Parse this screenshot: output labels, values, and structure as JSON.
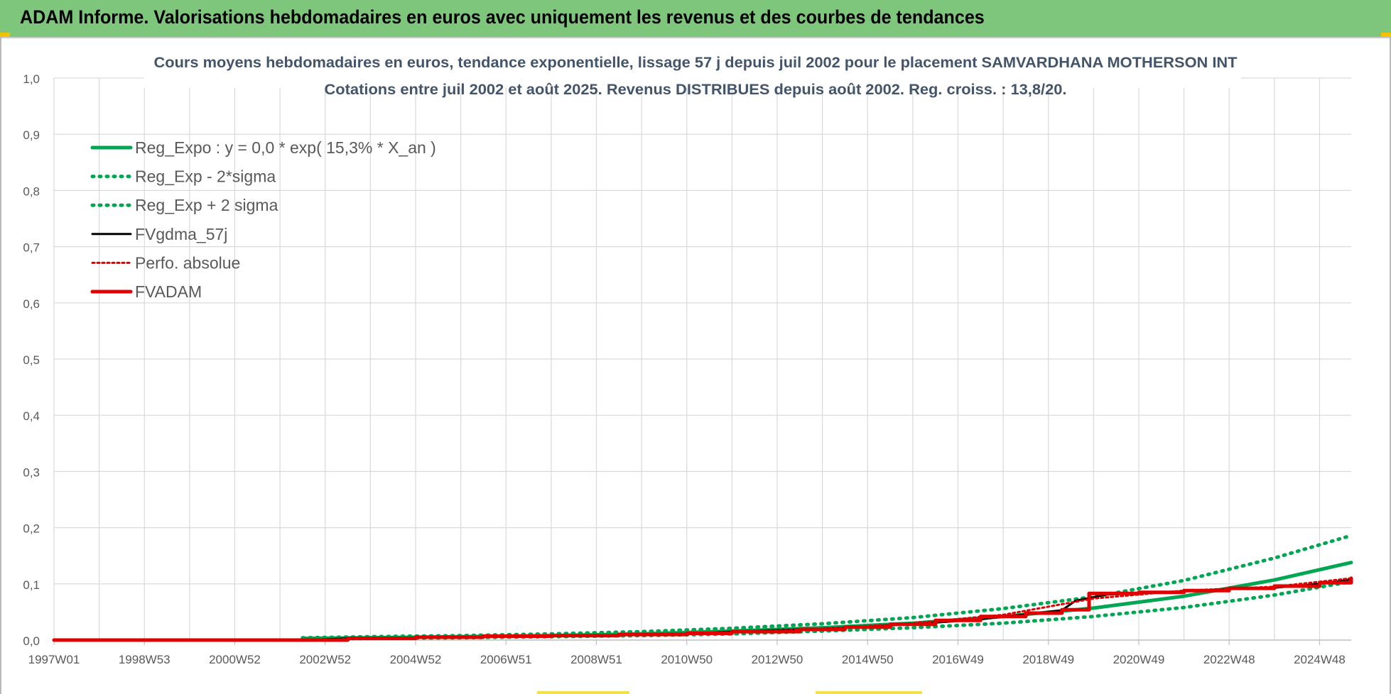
{
  "header": {
    "title": "ADAM Informe. Valorisations hebdomadaires en euros avec uniquement les revenus et des courbes de tendances"
  },
  "chart_data": {
    "type": "line",
    "title": "Cours moyens hebdomadaires en euros, tendance exponentielle, lissage 57 j depuis juil 2002 pour le placement SAMVARDHANA MOTHERSON INT",
    "subtitle": "Cotations entre juil 2002 et août 2025. Revenus DISTRIBUES depuis août 2002. Reg. croiss. : 13,8/20.",
    "xlabel": "",
    "ylabel": "",
    "x_range": [
      1997.0,
      2025.7
    ],
    "ylim": [
      0,
      1.0
    ],
    "grid": true,
    "legend_position": "top-left",
    "x_ticks": [
      {
        "label": "1997W01",
        "x": 1997.0
      },
      {
        "label": "1998W53",
        "x": 1999.0
      },
      {
        "label": "2000W52",
        "x": 2001.0
      },
      {
        "label": "2002W52",
        "x": 2003.0
      },
      {
        "label": "2004W52",
        "x": 2005.0
      },
      {
        "label": "2006W51",
        "x": 2007.0
      },
      {
        "label": "2008W51",
        "x": 2009.0
      },
      {
        "label": "2010W50",
        "x": 2011.0
      },
      {
        "label": "2012W50",
        "x": 2013.0
      },
      {
        "label": "2014W50",
        "x": 2015.0
      },
      {
        "label": "2016W49",
        "x": 2017.0
      },
      {
        "label": "2018W49",
        "x": 2019.0
      },
      {
        "label": "2020W49",
        "x": 2021.0
      },
      {
        "label": "2022W48",
        "x": 2023.0
      },
      {
        "label": "2024W48",
        "x": 2025.0
      }
    ],
    "y_ticks": [
      "0,0",
      "0,1",
      "0,2",
      "0,3",
      "0,4",
      "0,5",
      "0,6",
      "0,7",
      "0,8",
      "0,9",
      "1,0"
    ],
    "series": [
      {
        "name": "Reg_Expo : y = 0,0 * exp( 15,3% *  X_an )",
        "color": "#00a651",
        "style": "solid",
        "width": 5,
        "x": [
          2002.5,
          2004,
          2006,
          2008,
          2010,
          2012,
          2014,
          2016,
          2018,
          2020,
          2022,
          2024,
          2025.7
        ],
        "y": [
          0.003,
          0.004,
          0.006,
          0.008,
          0.011,
          0.016,
          0.022,
          0.03,
          0.042,
          0.057,
          0.078,
          0.107,
          0.138
        ]
      },
      {
        "name": "Reg_Exp - 2*sigma",
        "color": "#00a651",
        "style": "dotted",
        "width": 5,
        "x": [
          2002.5,
          2004,
          2006,
          2008,
          2010,
          2012,
          2014,
          2016,
          2018,
          2020,
          2022,
          2024,
          2025.7
        ],
        "y": [
          0.002,
          0.003,
          0.004,
          0.006,
          0.008,
          0.011,
          0.016,
          0.022,
          0.03,
          0.042,
          0.058,
          0.08,
          0.104
        ]
      },
      {
        "name": "Reg_Exp + 2 sigma",
        "color": "#00a651",
        "style": "dotted",
        "width": 5,
        "x": [
          2002.5,
          2004,
          2006,
          2008,
          2010,
          2012,
          2014,
          2016,
          2018,
          2020,
          2022,
          2024,
          2025.7
        ],
        "y": [
          0.004,
          0.006,
          0.008,
          0.011,
          0.015,
          0.021,
          0.029,
          0.04,
          0.056,
          0.077,
          0.106,
          0.146,
          0.186
        ]
      },
      {
        "name": "FVgdma_57j",
        "color": "#000000",
        "style": "solid",
        "width": 3,
        "x": [
          1997.0,
          2002.5,
          2003.5,
          2005.0,
          2006.5,
          2008.0,
          2009.5,
          2011.0,
          2012.0,
          2013.5,
          2014.5,
          2015.5,
          2016.5,
          2017.5,
          2018.5,
          2019.3,
          2019.6,
          2020.3,
          2021.0,
          2022.0,
          2023.0,
          2024.0,
          2025.0,
          2025.7
        ],
        "y": [
          0.0,
          0.0,
          0.003,
          0.004,
          0.006,
          0.007,
          0.009,
          0.011,
          0.015,
          0.019,
          0.022,
          0.026,
          0.031,
          0.037,
          0.046,
          0.053,
          0.07,
          0.081,
          0.083,
          0.087,
          0.091,
          0.093,
          0.1,
          0.108
        ]
      },
      {
        "name": "Perfo. absolue",
        "color": "#e00000",
        "style": "dotted",
        "width": 3,
        "x": [
          2002.5,
          2004,
          2006,
          2008,
          2010,
          2012,
          2014,
          2016,
          2018,
          2020,
          2022,
          2024,
          2025.7
        ],
        "y": [
          0.0,
          0.003,
          0.005,
          0.007,
          0.01,
          0.014,
          0.02,
          0.03,
          0.045,
          0.074,
          0.088,
          0.095,
          0.11
        ]
      },
      {
        "name": "FVADAM",
        "color": "#e00000",
        "style": "step",
        "width": 5,
        "x": [
          1997.0,
          2002.5,
          2003.5,
          2005.0,
          2006.5,
          2008.0,
          2009.5,
          2011.0,
          2012.0,
          2013.5,
          2014.5,
          2015.5,
          2016.5,
          2017.5,
          2018.5,
          2019.3,
          2019.9,
          2021.0,
          2022.0,
          2023.0,
          2024.0,
          2025.0,
          2025.7
        ],
        "y": [
          0.0,
          0.0,
          0.003,
          0.005,
          0.007,
          0.008,
          0.01,
          0.012,
          0.015,
          0.019,
          0.023,
          0.028,
          0.035,
          0.042,
          0.048,
          0.054,
          0.083,
          0.085,
          0.088,
          0.092,
          0.096,
          0.102,
          0.11
        ]
      }
    ]
  }
}
